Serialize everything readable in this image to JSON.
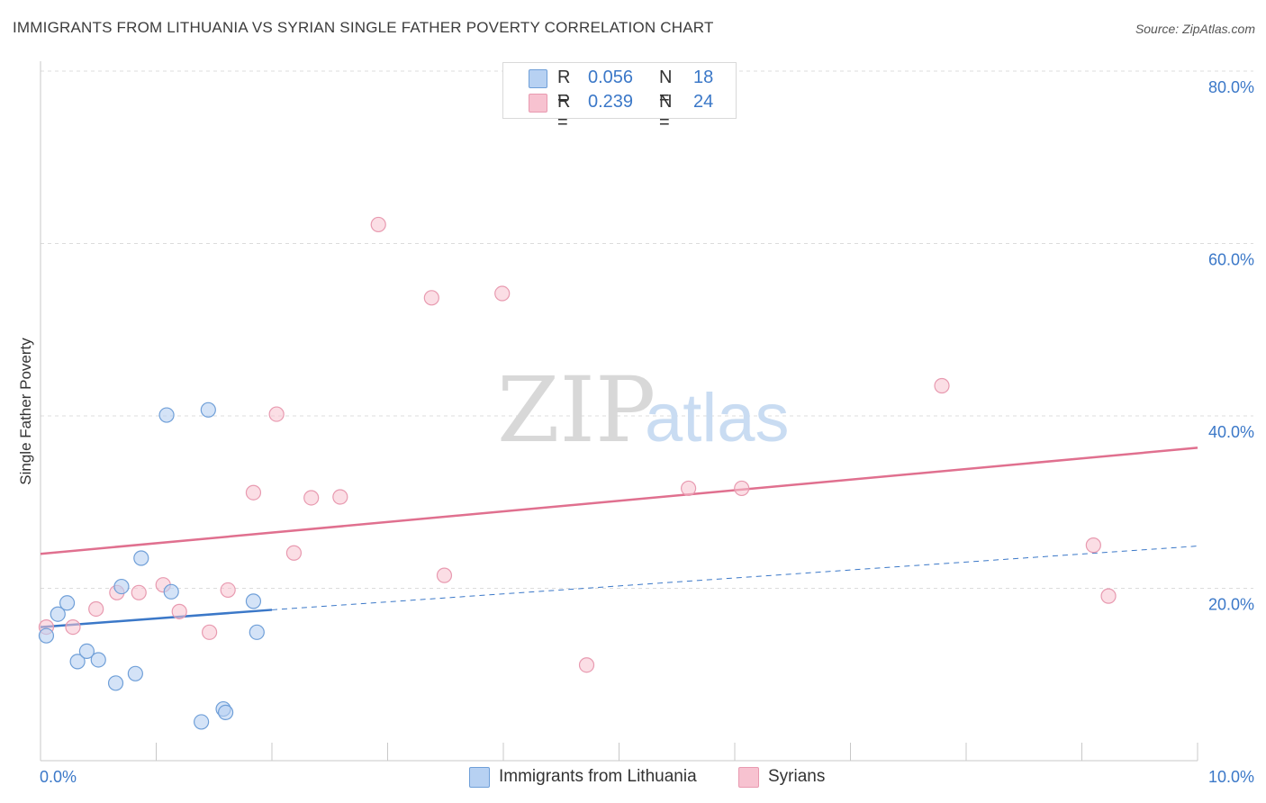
{
  "header": {
    "title": "IMMIGRANTS FROM LITHUANIA VS SYRIAN SINGLE FATHER POVERTY CORRELATION CHART",
    "source": "Source: ZipAtlas.com"
  },
  "watermark": {
    "zip": "ZIP",
    "atlas": "atlas"
  },
  "colors": {
    "blue": "#3b78c8",
    "blue_fill": "#b7d1f2",
    "blue_stroke": "#6f9fd8",
    "pink": "#e0708f",
    "pink_fill": "#f7c2d0",
    "pink_stroke": "#e89ab0",
    "grid": "#dcdcdc"
  },
  "legend": {
    "rows": [
      {
        "r_label": "R =",
        "r_value": "0.056",
        "n_label": "N =",
        "n_value": "18"
      },
      {
        "r_label": "R =",
        "r_value": "0.239",
        "n_label": "N =",
        "n_value": "24"
      }
    ]
  },
  "bottom_legend": {
    "items": [
      "Immigrants from Lithuania",
      "Syrians"
    ]
  },
  "chart_data": {
    "type": "scatter",
    "title": "IMMIGRANTS FROM LITHUANIA VS SYRIAN SINGLE FATHER POVERTY CORRELATION CHART",
    "xlabel": "",
    "ylabel": "Single Father Poverty",
    "xlim": [
      0,
      10
    ],
    "ylim": [
      0,
      80
    ],
    "x_tick_labels": [
      "0.0%",
      "10.0%"
    ],
    "y_ticks": [
      20,
      40,
      60,
      80
    ],
    "y_tick_labels": [
      "20.0%",
      "40.0%",
      "60.0%",
      "80.0%"
    ],
    "grid": true,
    "series": [
      {
        "name": "Immigrants from Lithuania",
        "r": 0.056,
        "n": 18,
        "points": [
          [
            0.05,
            14.5
          ],
          [
            0.15,
            17.0
          ],
          [
            0.23,
            18.3
          ],
          [
            0.32,
            11.5
          ],
          [
            0.4,
            12.7
          ],
          [
            0.5,
            11.7
          ],
          [
            0.65,
            9.0
          ],
          [
            0.7,
            20.2
          ],
          [
            0.82,
            10.1
          ],
          [
            0.87,
            23.5
          ],
          [
            1.09,
            40.1
          ],
          [
            1.13,
            19.6
          ],
          [
            1.39,
            4.5
          ],
          [
            1.45,
            40.7
          ],
          [
            1.58,
            6.0
          ],
          [
            1.6,
            5.6
          ],
          [
            1.84,
            18.5
          ],
          [
            1.87,
            14.9
          ]
        ],
        "trend_solid": [
          [
            0.0,
            15.5
          ],
          [
            2.0,
            17.5
          ]
        ],
        "trend_dashed": [
          [
            2.0,
            17.5
          ],
          [
            10.0,
            24.9
          ]
        ]
      },
      {
        "name": "Syrians",
        "r": 0.239,
        "n": 24,
        "points": [
          [
            0.05,
            15.5
          ],
          [
            0.28,
            15.5
          ],
          [
            0.48,
            17.6
          ],
          [
            0.66,
            19.5
          ],
          [
            0.85,
            19.5
          ],
          [
            1.06,
            20.4
          ],
          [
            1.2,
            17.3
          ],
          [
            1.46,
            14.9
          ],
          [
            1.62,
            19.8
          ],
          [
            1.84,
            31.1
          ],
          [
            2.04,
            40.2
          ],
          [
            2.19,
            24.1
          ],
          [
            2.34,
            30.5
          ],
          [
            2.59,
            30.6
          ],
          [
            2.92,
            62.2
          ],
          [
            3.38,
            53.7
          ],
          [
            3.49,
            21.5
          ],
          [
            3.99,
            54.2
          ],
          [
            4.72,
            11.1
          ],
          [
            5.6,
            31.6
          ],
          [
            6.06,
            31.6
          ],
          [
            7.79,
            43.5
          ],
          [
            9.1,
            25.0
          ],
          [
            9.23,
            19.1
          ]
        ],
        "trend_solid": [
          [
            0.0,
            24.0
          ],
          [
            10.0,
            36.3
          ]
        ]
      }
    ]
  }
}
